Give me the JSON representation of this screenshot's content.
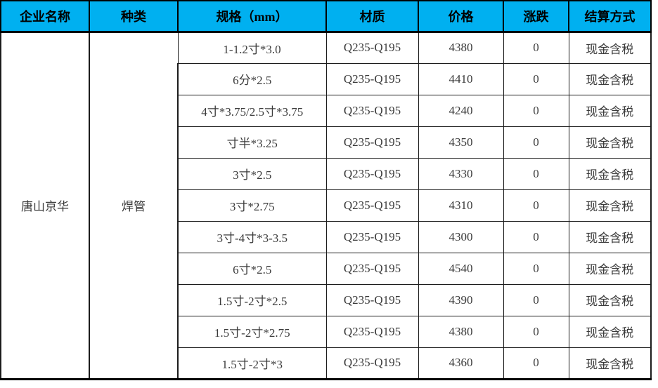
{
  "colors": {
    "header_bg": "#00b0f0",
    "header_text": "#000000",
    "body_text": "#3a3a3a",
    "border": "#000000"
  },
  "table": {
    "headers": [
      "企业名称",
      "种类",
      "规格（mm）",
      "材质",
      "价格",
      "涨跌",
      "结算方式"
    ],
    "company": "唐山京华",
    "category": "焊管",
    "rows": [
      {
        "spec": "1-1.2寸*3.0",
        "material": "Q235-Q195",
        "price": "4380",
        "change": "0",
        "settlement": "现金含税"
      },
      {
        "spec": "6分*2.5",
        "material": "Q235-Q195",
        "price": "4410",
        "change": "0",
        "settlement": "现金含税"
      },
      {
        "spec": "4寸*3.75/2.5寸*3.75",
        "material": "Q235-Q195",
        "price": "4240",
        "change": "0",
        "settlement": "现金含税"
      },
      {
        "spec": "寸半*3.25",
        "material": "Q235-Q195",
        "price": "4350",
        "change": "0",
        "settlement": "现金含税"
      },
      {
        "spec": "3寸*2.5",
        "material": "Q235-Q195",
        "price": "4330",
        "change": "0",
        "settlement": "现金含税"
      },
      {
        "spec": "3寸*2.75",
        "material": "Q235-Q195",
        "price": "4310",
        "change": "0",
        "settlement": "现金含税"
      },
      {
        "spec": "3寸-4寸*3-3.5",
        "material": "Q235-Q195",
        "price": "4300",
        "change": "0",
        "settlement": "现金含税"
      },
      {
        "spec": "6寸*2.5",
        "material": "Q235-Q195",
        "price": "4540",
        "change": "0",
        "settlement": "现金含税"
      },
      {
        "spec": "1.5寸-2寸*2.5",
        "material": "Q235-Q195",
        "price": "4390",
        "change": "0",
        "settlement": "现金含税"
      },
      {
        "spec": "1.5寸-2寸*2.75",
        "material": "Q235-Q195",
        "price": "4380",
        "change": "0",
        "settlement": "现金含税"
      },
      {
        "spec": "1.5寸-2寸*3",
        "material": "Q235-Q195",
        "price": "4360",
        "change": "0",
        "settlement": "现金含税"
      }
    ]
  }
}
